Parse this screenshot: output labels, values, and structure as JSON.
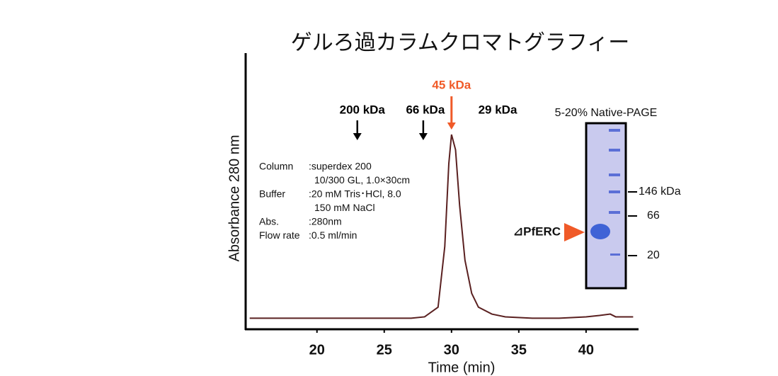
{
  "chart_data": {
    "type": "line",
    "title": "ゲルろ過カラムクロマトグラフィー",
    "x_label": "Time (min)",
    "y_label": "Absorbance 280 nm",
    "x": [
      15,
      20,
      25,
      27,
      28,
      29,
      29.5,
      29.8,
      30,
      30.3,
      30.6,
      31,
      31.5,
      32,
      33,
      34,
      36,
      38,
      40,
      41,
      41.8,
      42.2,
      43.5
    ],
    "values": [
      0.04,
      0.04,
      0.04,
      0.04,
      0.045,
      0.08,
      0.3,
      0.6,
      0.705,
      0.65,
      0.45,
      0.25,
      0.13,
      0.08,
      0.055,
      0.045,
      0.04,
      0.04,
      0.045,
      0.05,
      0.055,
      0.045,
      0.045
    ],
    "color": "#5a2020",
    "xlim": [
      14.7,
      43.9
    ],
    "ylim": [
      0,
      1
    ],
    "xticks": [
      20,
      25,
      30,
      35,
      40
    ],
    "markers": [
      {
        "label": "200 kDa",
        "x": 23,
        "color": "#000000"
      },
      {
        "label": "66 kDa",
        "x": 27.9,
        "color": "#000000"
      },
      {
        "label": "45 kDa",
        "x": 30,
        "color": "#f05a28"
      },
      {
        "label": "29 kDa",
        "x": null,
        "color": "#000000"
      }
    ],
    "conditions": [
      {
        "label": "Column",
        "value": ":superdex 200"
      },
      {
        "value": "10/300 GL, 1.0×30cm"
      },
      {
        "label": "Buffer",
        "value": ":20 mM Tris･HCl, 8.0"
      },
      {
        "value": "150 mM NaCl"
      },
      {
        "label": "Abs.",
        "value": ":280nm"
      },
      {
        "label": "Flow rate",
        "value": ":0.5 ml/min"
      }
    ],
    "gel": {
      "title": "5-20% Native-PAGE",
      "sample": "⊿PfERC",
      "ladder": [
        "146 kDa",
        "66",
        "20"
      ]
    }
  }
}
